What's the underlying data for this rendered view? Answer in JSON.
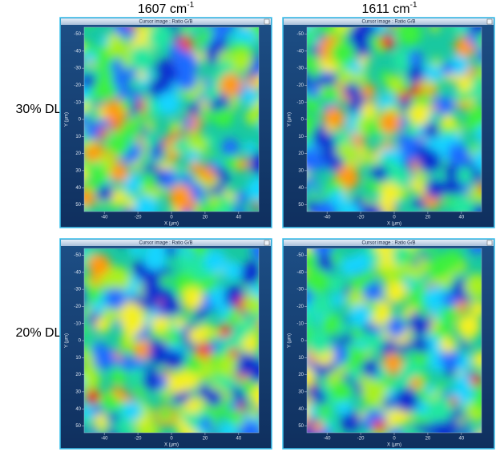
{
  "columns": [
    {
      "text": "1607 cm",
      "superscript": "-1"
    },
    {
      "text": "1611 cm",
      "superscript": "-1"
    }
  ],
  "rows": [
    "30% DL",
    "20% DL"
  ],
  "panel": {
    "title": "Cursor image : Ratio G/B",
    "x_label": "X (µm)",
    "y_label": "Y (µm)",
    "xlim": [
      -52,
      52
    ],
    "ylim": [
      -54,
      54
    ],
    "xticks": [
      -40,
      -20,
      0,
      20,
      40
    ],
    "yticks": [
      -50,
      -40,
      -30,
      -20,
      -10,
      0,
      10,
      20,
      30,
      40,
      50
    ]
  }
}
